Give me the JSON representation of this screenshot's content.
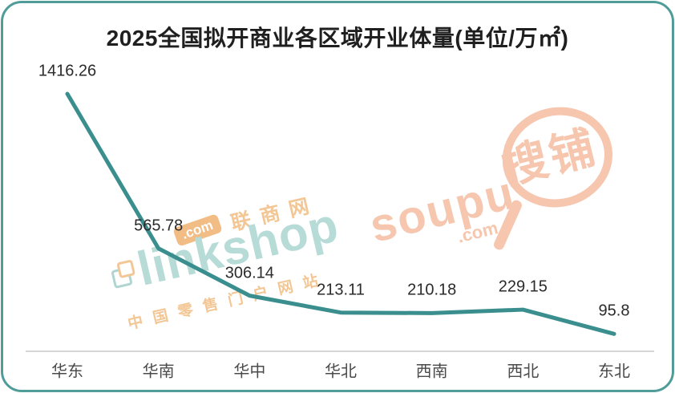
{
  "card": {
    "border_color": "#4f9c98",
    "background": "#ffffff"
  },
  "chart_data": {
    "type": "line",
    "title": "2025全国拟开商业各区域开业体量(单位/万㎡)",
    "categories": [
      "华东",
      "华南",
      "华中",
      "华北",
      "西南",
      "西北",
      "东北"
    ],
    "values": [
      1416.26,
      565.78,
      306.14,
      213.11,
      210.18,
      229.15,
      95.8
    ],
    "data_labels": [
      "1416.26",
      "565.78",
      "306.14",
      "213.11",
      "210.18",
      "229.15",
      "95.8"
    ],
    "xlabel": "",
    "ylabel": "",
    "ylim": [
      0,
      1500
    ],
    "grid": false,
    "legend": "none",
    "line_color": "#3a8e8e",
    "label_color": "#2b2b2b",
    "axis_label_color": "#4a4a4a"
  },
  "watermarks": {
    "linkshop": {
      "brand": "linkshop",
      "dotcom": ".com",
      "site_name": "联商网",
      "tagline": "中国零售门户网站",
      "teal": "#b7dbd7",
      "orange": "#f3c795"
    },
    "soupu": {
      "brand": "soupu",
      "dotcom": ".com",
      "site_name": "搜铺",
      "color": "#f6c6ae"
    }
  }
}
